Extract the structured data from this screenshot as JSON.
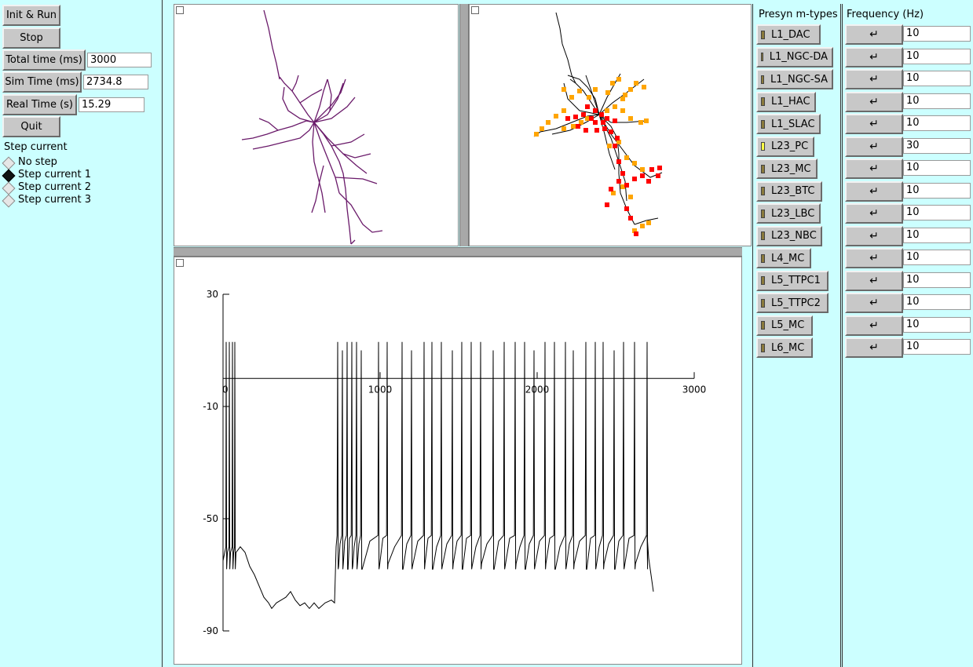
{
  "controls": {
    "init_run": "Init & Run",
    "stop": "Stop",
    "total_time_label": "Total time (ms)",
    "total_time_value": "3000",
    "sim_time_label": "Sim Time (ms)",
    "sim_time_value": "2734.8",
    "real_time_label": "Real Time (s)",
    "real_time_value": "15.29",
    "quit": "Quit"
  },
  "step_current": {
    "title": "Step current",
    "options": [
      {
        "label": "No step",
        "selected": false
      },
      {
        "label": "Step current 1",
        "selected": true
      },
      {
        "label": "Step current 2",
        "selected": false
      },
      {
        "label": "Step current 3",
        "selected": false
      }
    ]
  },
  "presyn": {
    "title": "Presyn m-types",
    "items": [
      {
        "label": "L1_DAC",
        "active": false
      },
      {
        "label": "L1_NGC-DA",
        "active": false
      },
      {
        "label": "L1_NGC-SA",
        "active": false
      },
      {
        "label": "L1_HAC",
        "active": false
      },
      {
        "label": "L1_SLAC",
        "active": false
      },
      {
        "label": "L23_PC",
        "active": true
      },
      {
        "label": "L23_MC",
        "active": false
      },
      {
        "label": "L23_BTC",
        "active": false
      },
      {
        "label": "L23_LBC",
        "active": false
      },
      {
        "label": "L23_NBC",
        "active": false
      },
      {
        "label": "L4_MC",
        "active": false
      },
      {
        "label": "L5_TTPC1",
        "active": false
      },
      {
        "label": "L5_TTPC2",
        "active": false
      },
      {
        "label": "L5_MC",
        "active": false
      },
      {
        "label": "L6_MC",
        "active": false
      }
    ]
  },
  "frequency": {
    "title": "Frequency (Hz)",
    "values": [
      "10",
      "10",
      "10",
      "10",
      "10",
      "30",
      "10",
      "10",
      "10",
      "10",
      "10",
      "10",
      "10",
      "10",
      "10"
    ],
    "button_icon": "return-arrow-icon",
    "button_glyph": "↵"
  },
  "colors": {
    "morph1": "#6a1a6a",
    "synapse_exc": "#ff0000",
    "synapse_other": "#ffa500",
    "trace": "#000000"
  },
  "chart_data": {
    "type": "line",
    "title": "",
    "xlabel": "",
    "ylabel": "",
    "xlim": [
      0,
      3000
    ],
    "ylim": [
      -90,
      30
    ],
    "xticks": [
      "0",
      "1000",
      "2000",
      "3000"
    ],
    "yticks": [
      "30",
      "-10",
      "-50",
      "-90"
    ],
    "baseline_pre": [
      [
        0,
        -62
      ],
      [
        20,
        -58
      ],
      [
        40,
        -64
      ],
      [
        60,
        -66
      ],
      [
        80,
        -61
      ],
      [
        110,
        -60
      ],
      [
        140,
        -62
      ],
      [
        170,
        -67
      ],
      [
        200,
        -70
      ],
      [
        230,
        -74
      ],
      [
        260,
        -78
      ],
      [
        290,
        -80
      ],
      [
        310,
        -82
      ],
      [
        340,
        -80
      ],
      [
        370,
        -79
      ],
      [
        400,
        -78
      ],
      [
        430,
        -76
      ],
      [
        460,
        -79
      ],
      [
        490,
        -81
      ],
      [
        520,
        -80
      ],
      [
        550,
        -82
      ],
      [
        580,
        -80
      ],
      [
        610,
        -82
      ],
      [
        650,
        -80
      ],
      [
        690,
        -79
      ],
      [
        710,
        -80
      ]
    ],
    "spikes_early": [
      20,
      40,
      60,
      75
    ],
    "spikes_late": [
      730,
      760,
      790,
      820,
      850,
      880,
      990,
      1045,
      1140,
      1200,
      1280,
      1330,
      1390,
      1460,
      1520,
      1580,
      1640,
      1720,
      1790,
      1860,
      1920,
      1980,
      2050,
      2110,
      2180,
      2230,
      2310,
      2370,
      2420,
      2490,
      2550,
      2620,
      2700
    ],
    "tonic_level": -54,
    "trough_level": -68,
    "end": [
      [
        2700,
        -56
      ],
      [
        2710,
        -64
      ],
      [
        2725,
        -70
      ],
      [
        2740,
        -76
      ]
    ]
  }
}
